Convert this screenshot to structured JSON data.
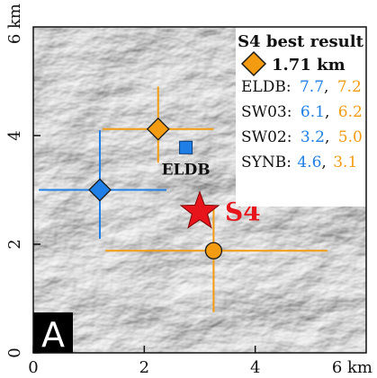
{
  "map": {
    "x_axis": {
      "ticks": [
        "0",
        "2",
        "4"
      ],
      "end_label": "6 km",
      "tick_values": [
        0,
        2,
        4
      ]
    },
    "y_axis": {
      "ticks": [
        "0",
        "2",
        "4"
      ],
      "end_label": "6 km",
      "tick_values": [
        0,
        2,
        4
      ]
    },
    "range": {
      "xmin": 0,
      "xmax": 6,
      "ymin": 0,
      "ymax": 6
    },
    "panel_letter": "A",
    "basemap": "grayscale shaded-relief terrain",
    "colors": {
      "orange": "#f39c12",
      "blue": "#1f7fe6",
      "red": "#e8141c"
    }
  },
  "legend": {
    "title": "S4 best result",
    "marker_label": "1.71 km",
    "entries": [
      {
        "station": "ELDB:",
        "v1": "7.7",
        "sep": ",",
        "v2": "7.2"
      },
      {
        "station": "SW03:",
        "v1": "6.1",
        "sep": ",",
        "v2": "6.2"
      },
      {
        "station": "SW02:",
        "v1": "3.2",
        "sep": ",",
        "v2": "5.0"
      },
      {
        "station": "SYNB:",
        "v1": "4.6",
        "sep": ",",
        "v2": "3.1"
      }
    ]
  },
  "station": {
    "label": "ELDB",
    "x": 2.75,
    "y": 3.78
  },
  "event": {
    "label": "S4",
    "x": 3.0,
    "y": 2.6
  },
  "estimates": [
    {
      "marker": "diamond",
      "color": "orange",
      "x": 2.25,
      "y": 4.12,
      "x_range": [
        1.25,
        3.25
      ],
      "y_range": [
        3.5,
        4.9
      ]
    },
    {
      "marker": "diamond",
      "color": "blue",
      "x": 1.2,
      "y": 3.0,
      "x_range": [
        0.1,
        2.4
      ],
      "y_range": [
        2.1,
        4.1
      ]
    },
    {
      "marker": "circle",
      "color": "orange",
      "x": 3.25,
      "y": 1.88,
      "x_range": [
        1.3,
        5.3
      ],
      "y_range": [
        0.75,
        2.65
      ]
    }
  ]
}
